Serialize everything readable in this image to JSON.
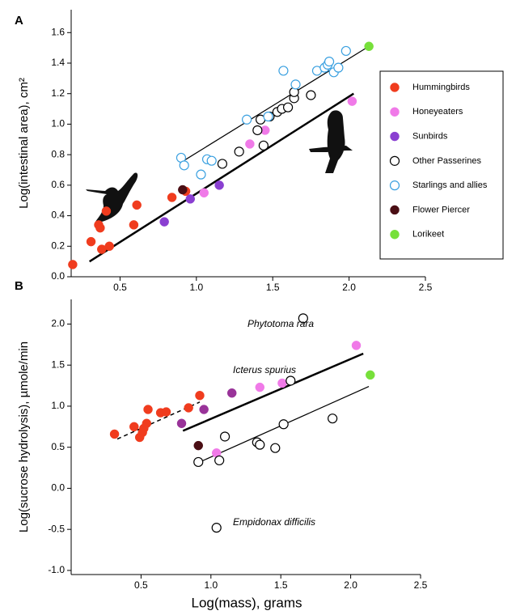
{
  "chart_data": [
    {
      "type": "scatter",
      "panel": "A",
      "y_label": "Log(intestinal area), cm²",
      "xlim": [
        0.18,
        2.5
      ],
      "ylim": [
        0,
        1.75
      ],
      "xticks": [
        0.5,
        {
          "value": 1,
          "label": "1.0"
        },
        1.5,
        {
          "value": 2,
          "label": "2.0"
        },
        2.5
      ],
      "yticks": [
        {
          "value": 0,
          "label": "0.0"
        },
        0.2,
        0.4,
        0.6,
        0.8,
        {
          "value": 1,
          "label": "1.0"
        },
        1.2,
        1.4,
        1.6
      ],
      "legend": true,
      "series": [
        {
          "name": "Hummingbirds",
          "color": "#f03c1e",
          "filled": true,
          "x": [
            0.19,
            0.31,
            0.36,
            0.37,
            0.38,
            0.41,
            0.43,
            0.59,
            0.61,
            0.84,
            0.93
          ],
          "values": [
            0.08,
            0.23,
            0.34,
            0.32,
            0.18,
            0.43,
            0.2,
            0.34,
            0.47,
            0.52,
            0.56
          ]
        },
        {
          "name": "Honeyeaters",
          "color": "#f07ae8",
          "filled": true,
          "x": [
            1.05,
            1.35,
            1.45,
            2.02
          ],
          "values": [
            0.55,
            0.87,
            0.96,
            1.15
          ]
        },
        {
          "name": "Sunbirds",
          "color": "#8a3fd1",
          "filled": true,
          "x": [
            0.79,
            0.96,
            1.15
          ],
          "values": [
            0.36,
            0.51,
            0.6
          ]
        },
        {
          "name": "Other Passerines",
          "color": "#000000",
          "filled": false,
          "x": [
            1.17,
            1.28,
            1.4,
            1.42,
            1.44,
            1.48,
            1.53,
            1.56,
            1.6,
            1.64,
            1.64,
            1.75
          ],
          "values": [
            0.74,
            0.82,
            0.96,
            1.03,
            0.86,
            1.05,
            1.08,
            1.1,
            1.11,
            1.17,
            1.21,
            1.19
          ]
        },
        {
          "name": "Starlings and allies",
          "color": "#3aa0e0",
          "filled": false,
          "x": [
            0.9,
            0.92,
            1.03,
            1.07,
            1.1,
            1.33,
            1.47,
            1.57,
            1.65,
            1.79,
            1.84,
            1.86,
            1.87,
            1.9,
            1.93,
            1.98
          ],
          "values": [
            0.78,
            0.73,
            0.67,
            0.77,
            0.76,
            1.03,
            1.05,
            1.35,
            1.26,
            1.35,
            1.37,
            1.39,
            1.41,
            1.34,
            1.37,
            1.48
          ]
        },
        {
          "name": "Flower Piercer",
          "color": "#4a0e14",
          "filled": true,
          "x": [
            0.91
          ],
          "values": [
            0.57
          ]
        },
        {
          "name": "Lorikeet",
          "color": "#77e03a",
          "filled": true,
          "x": [
            2.13
          ],
          "values": [
            1.51
          ]
        }
      ],
      "lines": [
        {
          "x": [
            0.9,
            2.13
          ],
          "values": [
            0.75,
            1.51
          ],
          "width": 1.2,
          "dashed": false
        },
        {
          "x": [
            0.3,
            2.03
          ],
          "values": [
            0.1,
            1.2
          ],
          "width": 2.5,
          "dashed": false
        }
      ]
    },
    {
      "type": "scatter",
      "panel": "B",
      "y_label": "Log(sucrose hydrolysis), µmole/min",
      "x_label": "Log(mass), grams",
      "xlim": [
        0,
        2.5
      ],
      "ylim": [
        -1.05,
        2.3
      ],
      "xticks": [
        0.5,
        {
          "value": 1,
          "label": "1.0"
        },
        1.5,
        {
          "value": 2,
          "label": "2.0"
        },
        2.5
      ],
      "yticks": [
        {
          "value": -1,
          "label": "-1.0"
        },
        -0.5,
        {
          "value": 0,
          "label": "0.0"
        },
        0.5,
        {
          "value": 1,
          "label": "1.0"
        },
        1.5,
        {
          "value": 2,
          "label": "2.0"
        }
      ],
      "legend": false,
      "annotations": [
        "Phytotoma rara",
        "Icterus spurius",
        "Empidonax difficilis"
      ],
      "series": [
        {
          "color": "#f03c1e",
          "filled": true,
          "x": [
            0.31,
            0.45,
            0.49,
            0.51,
            0.52,
            0.54,
            0.55,
            0.64,
            0.68,
            0.84,
            0.92
          ],
          "values": [
            0.66,
            0.75,
            0.62,
            0.68,
            0.73,
            0.79,
            0.96,
            0.92,
            0.93,
            0.98,
            1.13
          ]
        },
        {
          "color": "#f07ae8",
          "filled": true,
          "x": [
            1.04,
            1.35,
            1.51,
            2.04
          ],
          "values": [
            0.43,
            1.23,
            1.28,
            1.74
          ]
        },
        {
          "color": "#993399",
          "filled": true,
          "x": [
            0.79,
            0.95,
            1.15
          ],
          "values": [
            0.79,
            0.96,
            1.16
          ]
        },
        {
          "color": "#000000",
          "filled": false,
          "x": [
            0.91,
            1.06,
            1.1,
            1.33,
            1.35,
            1.46,
            1.52,
            1.57,
            1.66,
            1.87,
            1.04
          ],
          "values": [
            0.32,
            0.34,
            0.63,
            0.56,
            0.53,
            0.49,
            0.78,
            1.31,
            2.07,
            0.85,
            -0.48
          ]
        },
        {
          "color": "#4a0e14",
          "filled": true,
          "x": [
            0.91
          ],
          "values": [
            0.52
          ]
        },
        {
          "color": "#77e03a",
          "filled": true,
          "x": [
            2.14
          ],
          "values": [
            1.38
          ]
        }
      ],
      "lines": [
        {
          "x": [
            0.33,
            0.92
          ],
          "values": [
            0.6,
            1.05
          ],
          "width": 1.5,
          "dashed": true
        },
        {
          "x": [
            0.8,
            2.09
          ],
          "values": [
            0.7,
            1.64
          ],
          "width": 2.5,
          "dashed": false
        },
        {
          "x": [
            0.92,
            2.13
          ],
          "values": [
            0.32,
            1.24
          ],
          "width": 1.2,
          "dashed": false
        }
      ]
    }
  ]
}
